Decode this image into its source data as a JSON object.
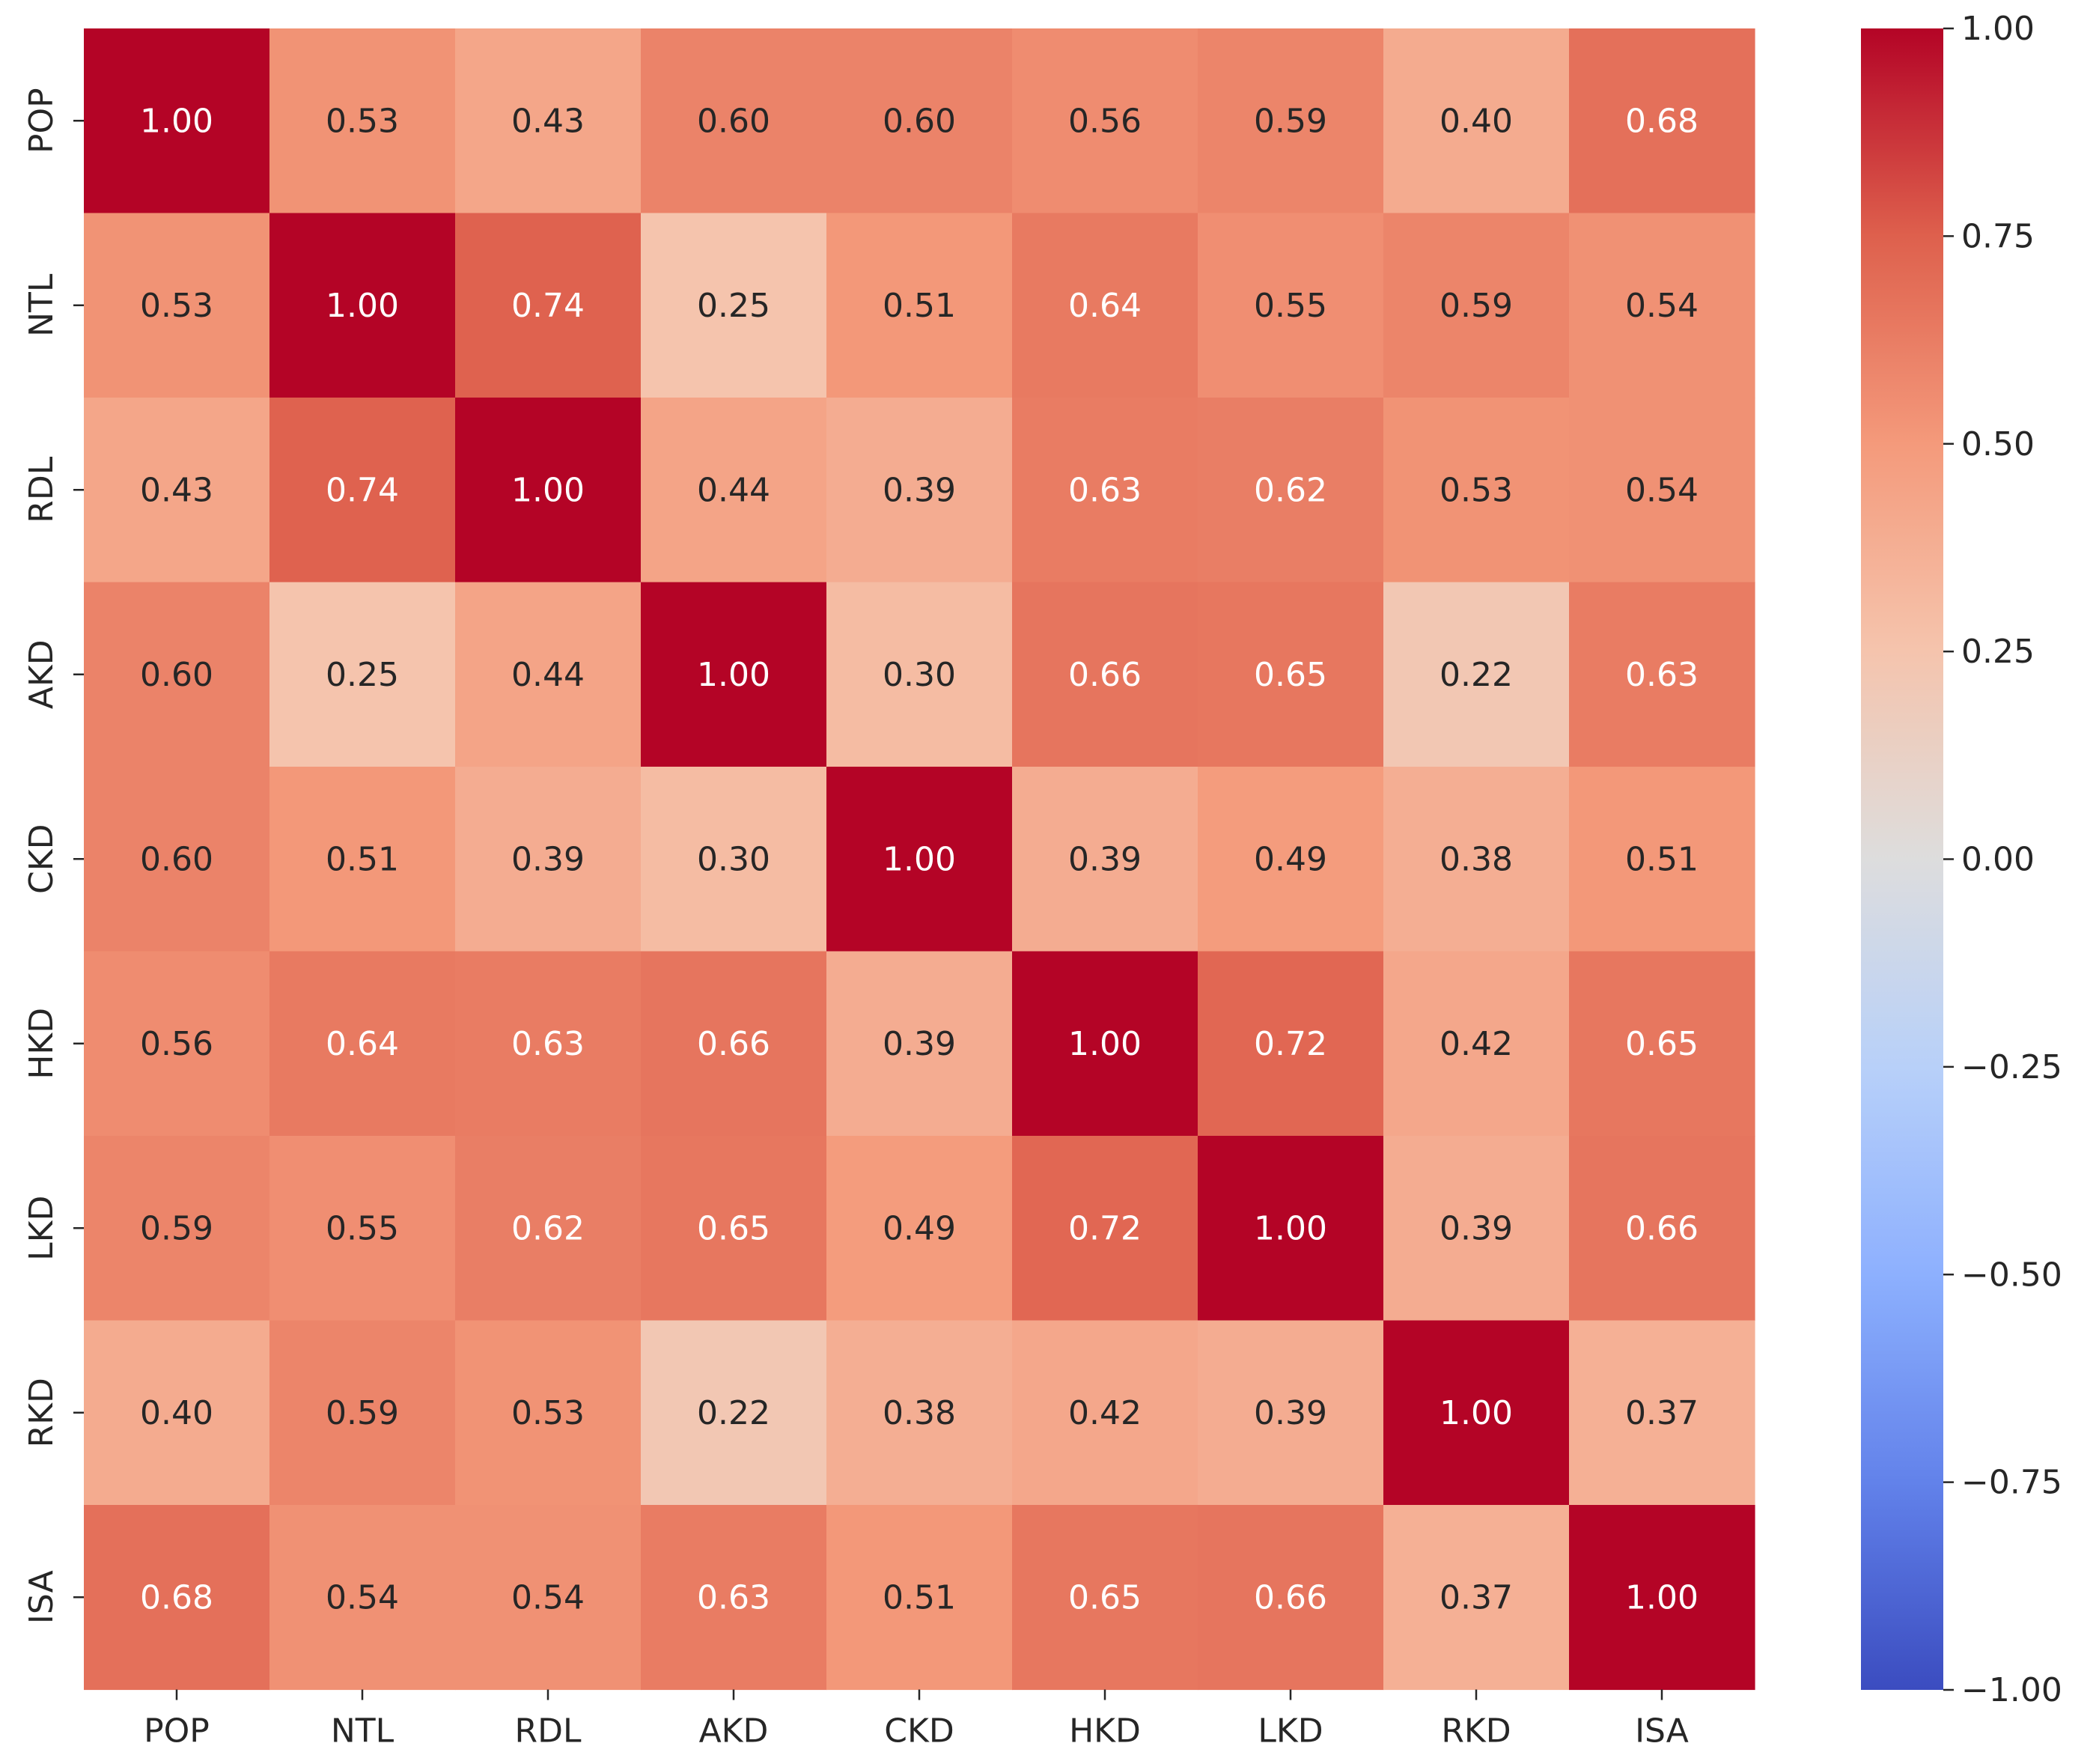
{
  "chart_data": {
    "type": "heatmap",
    "title": "",
    "xlabel": "",
    "ylabel": "",
    "row_labels": [
      "POP",
      "NTL",
      "RDL",
      "AKD",
      "CKD",
      "HKD",
      "LKD",
      "RKD",
      "ISA"
    ],
    "col_labels": [
      "POP",
      "NTL",
      "RDL",
      "AKD",
      "CKD",
      "HKD",
      "LKD",
      "RKD",
      "ISA"
    ],
    "values": [
      [
        1.0,
        0.53,
        0.43,
        0.6,
        0.6,
        0.56,
        0.59,
        0.4,
        0.68
      ],
      [
        0.53,
        1.0,
        0.74,
        0.25,
        0.51,
        0.64,
        0.55,
        0.59,
        0.54
      ],
      [
        0.43,
        0.74,
        1.0,
        0.44,
        0.39,
        0.63,
        0.62,
        0.53,
        0.54
      ],
      [
        0.6,
        0.25,
        0.44,
        1.0,
        0.3,
        0.66,
        0.65,
        0.22,
        0.63
      ],
      [
        0.6,
        0.51,
        0.39,
        0.3,
        1.0,
        0.39,
        0.49,
        0.38,
        0.51
      ],
      [
        0.56,
        0.64,
        0.63,
        0.66,
        0.39,
        1.0,
        0.72,
        0.42,
        0.65
      ],
      [
        0.59,
        0.55,
        0.62,
        0.65,
        0.49,
        0.72,
        1.0,
        0.39,
        0.66
      ],
      [
        0.4,
        0.59,
        0.53,
        0.22,
        0.38,
        0.42,
        0.39,
        1.0,
        0.37
      ],
      [
        0.68,
        0.54,
        0.54,
        0.63,
        0.51,
        0.65,
        0.66,
        0.37,
        1.0
      ]
    ],
    "value_format": "0.00",
    "colormap": "coolwarm",
    "vmin": -1.0,
    "vmax": 1.0,
    "colorbar": {
      "ticks": [
        1.0,
        0.75,
        0.5,
        0.25,
        0.0,
        -0.25,
        -0.5,
        -0.75,
        -1.0
      ],
      "tick_labels": [
        "1.00",
        "0.75",
        "0.50",
        "0.25",
        "0.00",
        "−0.25",
        "−0.50",
        "−0.75",
        "−1.00"
      ]
    },
    "text_colors": {
      "dark": "#262626",
      "light": "#ffffff"
    }
  }
}
